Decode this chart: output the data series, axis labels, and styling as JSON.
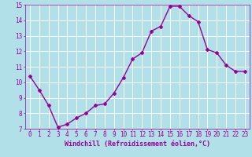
{
  "x": [
    0,
    1,
    2,
    3,
    4,
    5,
    6,
    7,
    8,
    9,
    10,
    11,
    12,
    13,
    14,
    15,
    16,
    17,
    18,
    19,
    20,
    21,
    22,
    23
  ],
  "y": [
    10.4,
    9.5,
    8.5,
    7.1,
    7.3,
    7.7,
    8.0,
    8.5,
    8.6,
    9.3,
    10.3,
    11.5,
    11.9,
    13.3,
    13.6,
    14.9,
    14.9,
    14.3,
    13.9,
    12.1,
    11.9,
    11.1,
    10.7,
    10.7
  ],
  "line_color": "#990099",
  "marker": "D",
  "marker_size": 2,
  "bg_color": "#b2e0e8",
  "grid_color": "#ffffff",
  "xlabel": "Windchill (Refroidissement éolien,°C)",
  "xlabel_color": "#990099",
  "tick_color": "#990099",
  "ylim": [
    7,
    15
  ],
  "xlim": [
    -0.5,
    23.5
  ],
  "yticks": [
    7,
    8,
    9,
    10,
    11,
    12,
    13,
    14,
    15
  ],
  "xticks": [
    0,
    1,
    2,
    3,
    4,
    5,
    6,
    7,
    8,
    9,
    10,
    11,
    12,
    13,
    14,
    15,
    16,
    17,
    18,
    19,
    20,
    21,
    22,
    23
  ],
  "linewidth": 1.0,
  "label_fontsize": 6,
  "tick_fontsize": 5.5
}
